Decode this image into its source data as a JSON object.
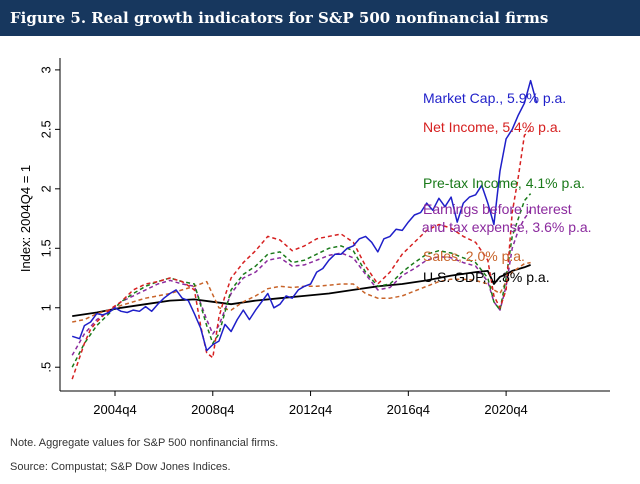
{
  "figure": {
    "title": "Figure 5. Real growth indicators for S&P 500 nonfinancial firms",
    "note": "Note. Aggregate values for S&P 500 nonfinancial firms.",
    "source": "Source: Compustat; S&P Dow Jones Indices."
  },
  "chart_data": {
    "type": "line",
    "title": "Figure 5. Real growth indicators for S&P 500 nonfinancial firms",
    "xlabel": "",
    "ylabel": "Index: 2004Q4 = 1",
    "xlim": [
      2002.5,
      2025.0
    ],
    "ylim": [
      0.3,
      3.1
    ],
    "x_ticks": [
      2004.75,
      2008.75,
      2012.75,
      2016.75,
      2020.75
    ],
    "x_tick_labels": [
      "2004q4",
      "2008q4",
      "2012q4",
      "2016q4",
      "2020q4"
    ],
    "y_ticks": [
      0.5,
      1,
      1.5,
      2,
      2.5,
      3
    ],
    "y_tick_labels": [
      ".5",
      "1",
      "1.5",
      "2",
      "2.5",
      "3"
    ],
    "grid": false,
    "series": [
      {
        "name": "Market Cap.",
        "label": "Market Cap., 5.9% p.a.",
        "color": "#1f1fc9",
        "dash": "solid",
        "x": [
          2003.0,
          2003.3,
          2003.5,
          2003.75,
          2004.0,
          2004.25,
          2004.5,
          2004.75,
          2005.0,
          2005.25,
          2005.5,
          2005.75,
          2006.0,
          2006.25,
          2006.5,
          2006.75,
          2007.0,
          2007.25,
          2007.5,
          2007.75,
          2008.0,
          2008.25,
          2008.5,
          2008.75,
          2009.0,
          2009.25,
          2009.5,
          2009.75,
          2010.0,
          2010.25,
          2010.5,
          2010.75,
          2011.0,
          2011.25,
          2011.5,
          2011.75,
          2012.0,
          2012.25,
          2012.5,
          2012.75,
          2013.0,
          2013.25,
          2013.5,
          2013.75,
          2014.0,
          2014.25,
          2014.5,
          2014.75,
          2015.0,
          2015.25,
          2015.5,
          2015.75,
          2016.0,
          2016.25,
          2016.5,
          2016.75,
          2017.0,
          2017.25,
          2017.5,
          2017.75,
          2018.0,
          2018.25,
          2018.5,
          2018.75,
          2019.0,
          2019.25,
          2019.5,
          2019.75,
          2020.0,
          2020.25,
          2020.5,
          2020.75,
          2021.0,
          2021.25,
          2021.5,
          2021.75,
          2022.0
        ],
        "y": [
          0.76,
          0.74,
          0.85,
          0.88,
          0.95,
          0.94,
          0.96,
          1.0,
          0.97,
          0.96,
          0.98,
          0.97,
          1.01,
          0.97,
          1.03,
          1.08,
          1.12,
          1.15,
          1.08,
          1.06,
          0.95,
          0.83,
          0.64,
          0.69,
          0.72,
          0.86,
          0.8,
          0.9,
          0.98,
          0.9,
          0.98,
          1.05,
          1.12,
          1.0,
          1.03,
          1.1,
          1.08,
          1.15,
          1.18,
          1.2,
          1.3,
          1.33,
          1.4,
          1.45,
          1.45,
          1.5,
          1.52,
          1.58,
          1.6,
          1.55,
          1.47,
          1.58,
          1.6,
          1.66,
          1.65,
          1.72,
          1.78,
          1.8,
          1.88,
          1.82,
          1.92,
          1.85,
          1.93,
          1.72,
          1.88,
          1.93,
          1.95,
          2.03,
          1.88,
          1.7,
          2.15,
          2.42,
          2.5,
          2.62,
          2.72,
          2.91,
          2.72
        ]
      },
      {
        "name": "Net Income",
        "label": "Net Income, 5.4% p.a.",
        "color": "#d62020",
        "dash": "dashed",
        "x": [
          2003.0,
          2003.25,
          2003.5,
          2003.75,
          2004.0,
          2004.5,
          2005.0,
          2005.5,
          2006.0,
          2006.5,
          2007.0,
          2007.5,
          2008.0,
          2008.25,
          2008.5,
          2008.75,
          2009.0,
          2009.25,
          2009.5,
          2010.0,
          2010.5,
          2011.0,
          2011.5,
          2012.0,
          2012.5,
          2013.0,
          2013.5,
          2014.0,
          2014.5,
          2015.0,
          2015.5,
          2016.0,
          2016.5,
          2017.0,
          2017.5,
          2018.0,
          2018.5,
          2019.0,
          2019.5,
          2020.0,
          2020.25,
          2020.5,
          2020.75,
          2021.0,
          2021.25,
          2021.5,
          2021.75
        ],
        "y": [
          0.4,
          0.55,
          0.7,
          0.82,
          0.88,
          0.98,
          1.05,
          1.15,
          1.2,
          1.22,
          1.25,
          1.22,
          1.15,
          0.85,
          0.62,
          0.58,
          0.92,
          1.1,
          1.25,
          1.38,
          1.48,
          1.6,
          1.57,
          1.48,
          1.52,
          1.58,
          1.6,
          1.62,
          1.55,
          1.35,
          1.2,
          1.3,
          1.45,
          1.55,
          1.65,
          1.7,
          1.67,
          1.6,
          1.55,
          1.4,
          1.1,
          1.0,
          1.15,
          1.8,
          2.1,
          2.45,
          2.5
        ]
      },
      {
        "name": "Pre-tax Income",
        "label": "Pre-tax Income, 4.1% p.a.",
        "color": "#1a7a1a",
        "dash": "dashed",
        "x": [
          2003.0,
          2003.5,
          2004.0,
          2004.5,
          2005.0,
          2005.5,
          2006.0,
          2006.5,
          2007.0,
          2007.5,
          2008.0,
          2008.5,
          2008.75,
          2009.0,
          2009.5,
          2010.0,
          2010.5,
          2011.0,
          2011.5,
          2012.0,
          2012.5,
          2013.0,
          2013.5,
          2014.0,
          2014.5,
          2015.0,
          2015.5,
          2016.0,
          2016.5,
          2017.0,
          2017.5,
          2018.0,
          2018.5,
          2019.0,
          2019.5,
          2020.0,
          2020.25,
          2020.5,
          2020.75,
          2021.0,
          2021.25,
          2021.5,
          2021.75
        ],
        "y": [
          0.5,
          0.7,
          0.85,
          0.95,
          1.05,
          1.12,
          1.18,
          1.22,
          1.25,
          1.22,
          1.2,
          0.85,
          0.7,
          0.78,
          1.15,
          1.28,
          1.35,
          1.45,
          1.47,
          1.38,
          1.4,
          1.45,
          1.5,
          1.52,
          1.48,
          1.3,
          1.18,
          1.2,
          1.3,
          1.38,
          1.45,
          1.48,
          1.46,
          1.42,
          1.38,
          1.25,
          1.05,
          0.98,
          1.25,
          1.6,
          1.75,
          1.9,
          1.96
        ]
      },
      {
        "name": "Earnings before interest and tax expense",
        "label": "Earnings before interest and tax expense, 3.6% p.a.",
        "color": "#8b2a9e",
        "dash": "dashed",
        "x": [
          2003.0,
          2003.5,
          2004.0,
          2004.5,
          2005.0,
          2005.5,
          2006.0,
          2006.5,
          2007.0,
          2007.5,
          2008.0,
          2008.5,
          2008.75,
          2009.0,
          2009.5,
          2010.0,
          2010.5,
          2011.0,
          2011.5,
          2012.0,
          2012.5,
          2013.0,
          2013.5,
          2014.0,
          2014.5,
          2015.0,
          2015.5,
          2016.0,
          2016.5,
          2017.0,
          2017.5,
          2018.0,
          2018.5,
          2019.0,
          2019.5,
          2020.0,
          2020.25,
          2020.5,
          2020.75,
          2021.0,
          2021.25,
          2021.5,
          2021.75
        ],
        "y": [
          0.6,
          0.78,
          0.9,
          0.97,
          1.05,
          1.1,
          1.15,
          1.2,
          1.23,
          1.2,
          1.18,
          0.9,
          0.78,
          0.85,
          1.12,
          1.25,
          1.3,
          1.4,
          1.42,
          1.35,
          1.36,
          1.4,
          1.44,
          1.46,
          1.42,
          1.28,
          1.15,
          1.17,
          1.27,
          1.33,
          1.4,
          1.43,
          1.42,
          1.38,
          1.35,
          1.22,
          1.05,
          0.98,
          1.18,
          1.5,
          1.65,
          1.75,
          1.82
        ]
      },
      {
        "name": "Sales",
        "label": "Sales, 2.0% p.a.",
        "color": "#c8642a",
        "dash": "dashed",
        "x": [
          2003.0,
          2003.5,
          2004.0,
          2004.5,
          2005.0,
          2005.5,
          2006.0,
          2006.5,
          2007.0,
          2007.5,
          2008.0,
          2008.5,
          2009.0,
          2009.5,
          2010.0,
          2010.5,
          2011.0,
          2011.5,
          2012.0,
          2012.5,
          2013.0,
          2013.5,
          2014.0,
          2014.5,
          2015.0,
          2015.5,
          2016.0,
          2016.5,
          2017.0,
          2017.5,
          2018.0,
          2018.5,
          2019.0,
          2019.5,
          2020.0,
          2020.25,
          2020.5,
          2020.75,
          2021.0,
          2021.5,
          2021.75
        ],
        "y": [
          0.88,
          0.9,
          0.95,
          0.98,
          1.02,
          1.05,
          1.08,
          1.1,
          1.12,
          1.15,
          1.18,
          1.22,
          1.0,
          0.98,
          1.05,
          1.1,
          1.16,
          1.18,
          1.17,
          1.18,
          1.18,
          1.19,
          1.2,
          1.2,
          1.12,
          1.08,
          1.08,
          1.1,
          1.14,
          1.18,
          1.22,
          1.24,
          1.24,
          1.23,
          1.2,
          1.15,
          1.12,
          1.22,
          1.3,
          1.37,
          1.38
        ]
      },
      {
        "name": "U.S. GDP",
        "label": "U.S. GDP, 1.8% p.a.",
        "color": "#000000",
        "dash": "solid",
        "x": [
          2003.0,
          2004.0,
          2005.0,
          2006.0,
          2007.0,
          2008.0,
          2008.75,
          2009.5,
          2010.5,
          2011.5,
          2012.5,
          2013.5,
          2014.5,
          2015.5,
          2016.5,
          2017.5,
          2018.5,
          2019.5,
          2020.0,
          2020.25,
          2020.5,
          2020.75,
          2021.0,
          2021.5,
          2021.75
        ],
        "y": [
          0.93,
          0.96,
          1.0,
          1.03,
          1.06,
          1.07,
          1.05,
          1.03,
          1.06,
          1.08,
          1.1,
          1.12,
          1.15,
          1.18,
          1.2,
          1.23,
          1.27,
          1.3,
          1.31,
          1.2,
          1.26,
          1.28,
          1.31,
          1.34,
          1.36
        ]
      }
    ]
  }
}
